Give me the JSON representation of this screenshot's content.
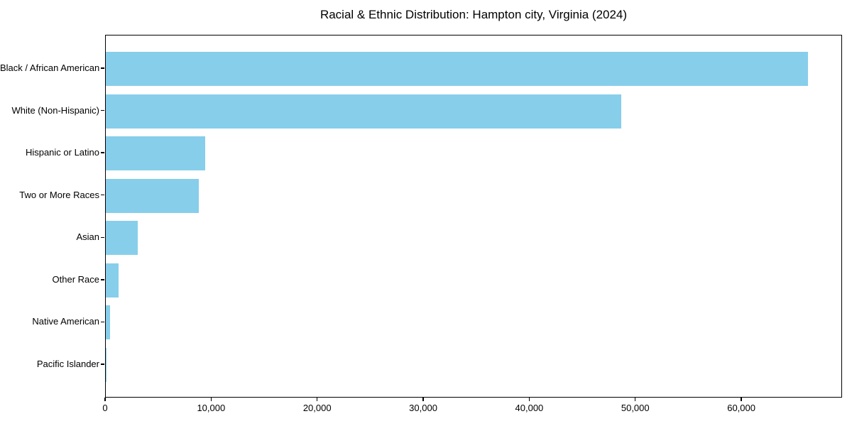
{
  "figure": {
    "title": "Racial & Ethnic Distribution: Hampton city, Virginia (2024)"
  },
  "chart_data": {
    "type": "bar",
    "orientation": "horizontal",
    "title": "Racial & Ethnic Distribution: Hampton city, Virginia (2024)",
    "categories": [
      "Black / African American",
      "White (Non-Hispanic)",
      "Hispanic or Latino",
      "Two or More Races",
      "Asian",
      "Other Race",
      "Native American",
      "Pacific Islander"
    ],
    "values": [
      66200,
      48600,
      9400,
      8800,
      3000,
      1200,
      400,
      50
    ],
    "xlabel": "",
    "ylabel": "",
    "xlim": [
      0,
      69500
    ],
    "xticks": [
      0,
      10000,
      20000,
      30000,
      40000,
      50000,
      60000
    ],
    "xtick_labels": [
      "0",
      "10,000",
      "20,000",
      "30,000",
      "40,000",
      "50,000",
      "60,000"
    ],
    "grid": false,
    "legend": false,
    "bar_color": "#87CEEB",
    "axis_color": "#000000",
    "background_color": "#FFFFFF"
  }
}
